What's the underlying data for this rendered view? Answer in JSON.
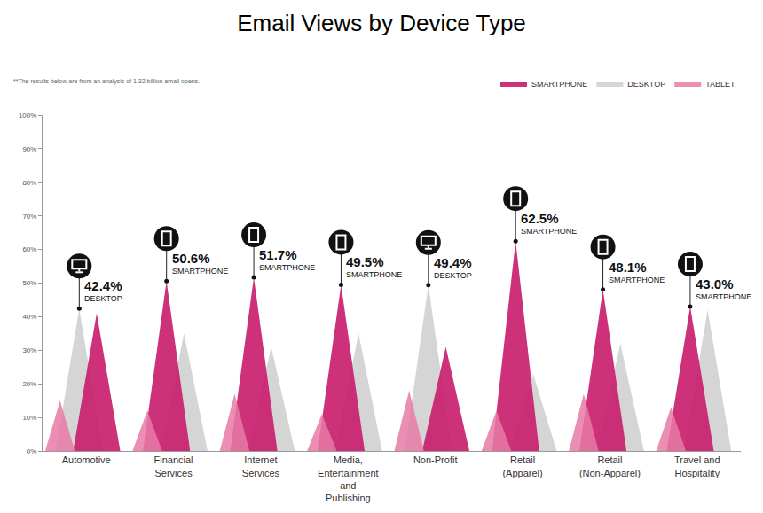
{
  "chart_data": {
    "type": "triangle",
    "title": "Email Views by Device Type",
    "subtitle": "**The results below are from an analysis of 1.32 billion email opens.",
    "categories": [
      "Automotive",
      "Financial Services",
      "Internet Services",
      "Media, Entertainment and Publishing",
      "Non-Profit",
      "Retail (Apparel)",
      "Retail (Non-Apparel)",
      "Travel and Hospitality"
    ],
    "series": [
      {
        "name": "SMARTPHONE",
        "color": "#c8206e",
        "marker": "smartphone",
        "values": [
          41,
          50.6,
          51.7,
          49.5,
          31,
          62.5,
          48.1,
          43.0
        ],
        "value_labels": [
          null,
          "50.6%",
          "51.7%",
          "49.5%",
          null,
          "62.5%",
          "48.1%",
          "43.0%"
        ]
      },
      {
        "name": "DESKTOP",
        "color": "#c9c9c9",
        "marker": "desktop",
        "values": [
          42.4,
          35,
          31,
          35,
          49.4,
          23,
          32,
          42
        ],
        "value_labels": [
          "42.4%",
          null,
          null,
          null,
          "49.4%",
          null,
          null,
          null
        ]
      },
      {
        "name": "TABLET",
        "color": "#e67aa6",
        "marker": "tablet",
        "values": [
          15,
          12,
          17,
          11,
          18,
          12,
          17,
          13
        ]
      }
    ],
    "ylim": [
      0,
      100
    ],
    "yticks": [
      {
        "value": 0,
        "label": "0%"
      },
      {
        "value": 10,
        "label": "10%"
      },
      {
        "value": 20,
        "label": "20%"
      },
      {
        "value": 30,
        "label": "30%"
      },
      {
        "value": 40,
        "label": "40%"
      },
      {
        "value": 50,
        "label": "50%"
      },
      {
        "value": 60,
        "label": "60%"
      },
      {
        "value": 70,
        "label": "70%"
      },
      {
        "value": 80,
        "label": "80%"
      },
      {
        "value": 90,
        "label": "90%"
      },
      {
        "value": 100,
        "label": "100%"
      }
    ],
    "grid": false,
    "legend": "top right"
  }
}
